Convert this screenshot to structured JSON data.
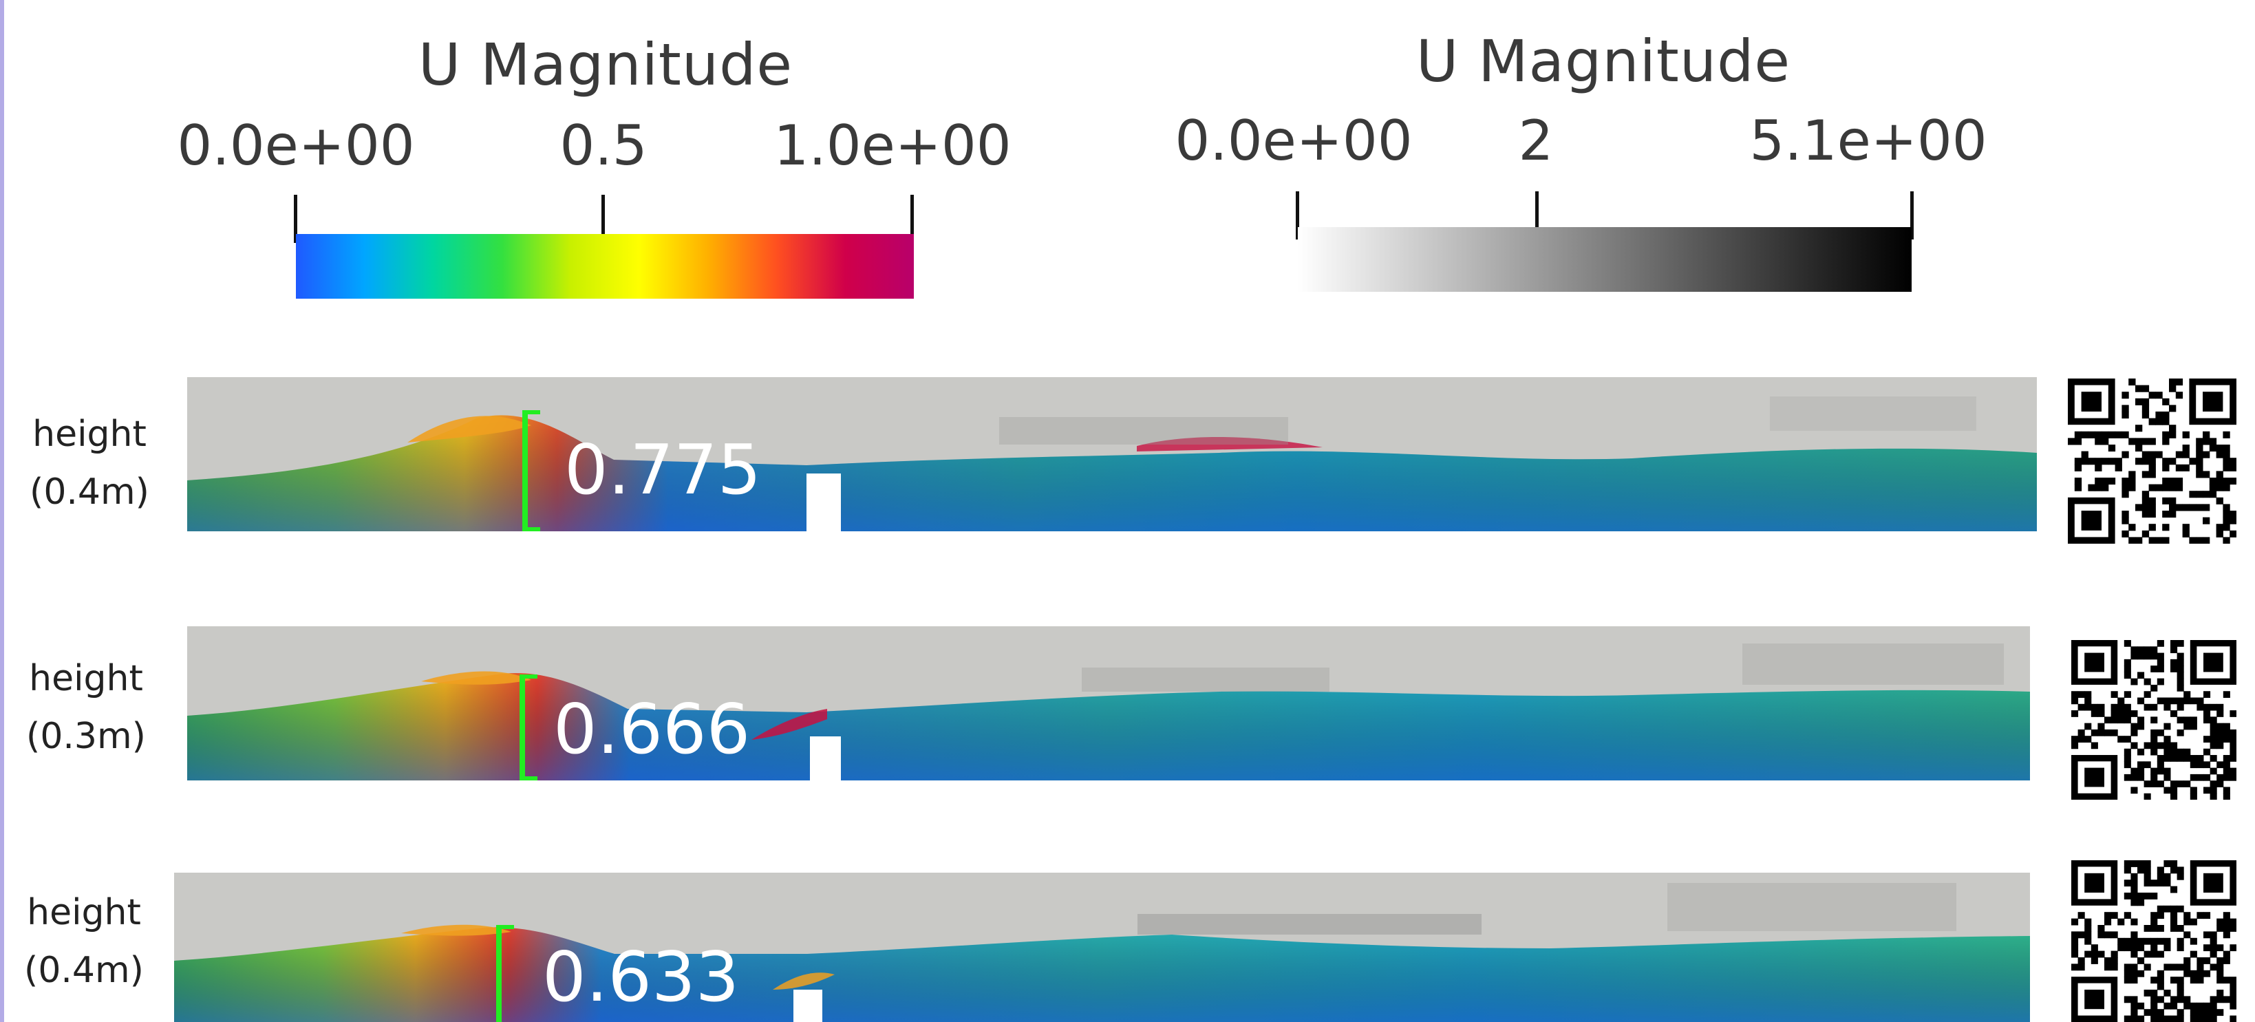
{
  "colorbars": [
    {
      "title": "U Magnitude",
      "tick_labels": [
        "0.0e+00",
        "0.5",
        "1.0e+00"
      ],
      "tick_values": [
        0,
        0.5,
        1.0
      ],
      "range": [
        0,
        1.0
      ],
      "colormap": "rainbow",
      "stops": [
        "#1f5aff",
        "#00a6ff",
        "#00d6a0",
        "#33e040",
        "#c8f000",
        "#ffff00",
        "#ffb000",
        "#ff5020",
        "#d0004a",
        "#b8006a"
      ]
    },
    {
      "title": "U Magnitude",
      "tick_labels": [
        "0.0e+00",
        "2",
        "5.1e+00"
      ],
      "tick_values": [
        0,
        2,
        5.1
      ],
      "range": [
        0,
        5.1
      ],
      "colormap": "grayscale",
      "stops": [
        "#ffffff",
        "#000000"
      ]
    }
  ],
  "rows": [
    {
      "label_line1": "height",
      "label_line2": "(0.4m)",
      "probe_value": "0.775"
    },
    {
      "label_line1": "height",
      "label_line2": "(0.3m)",
      "probe_value": "0.666"
    },
    {
      "label_line1": "height",
      "label_line2": "(0.4m)",
      "probe_value": "0.633"
    }
  ],
  "colors": {
    "probe": "#22ee22",
    "accent_strip": "#b3abe6",
    "air": "#c9c9c6"
  }
}
